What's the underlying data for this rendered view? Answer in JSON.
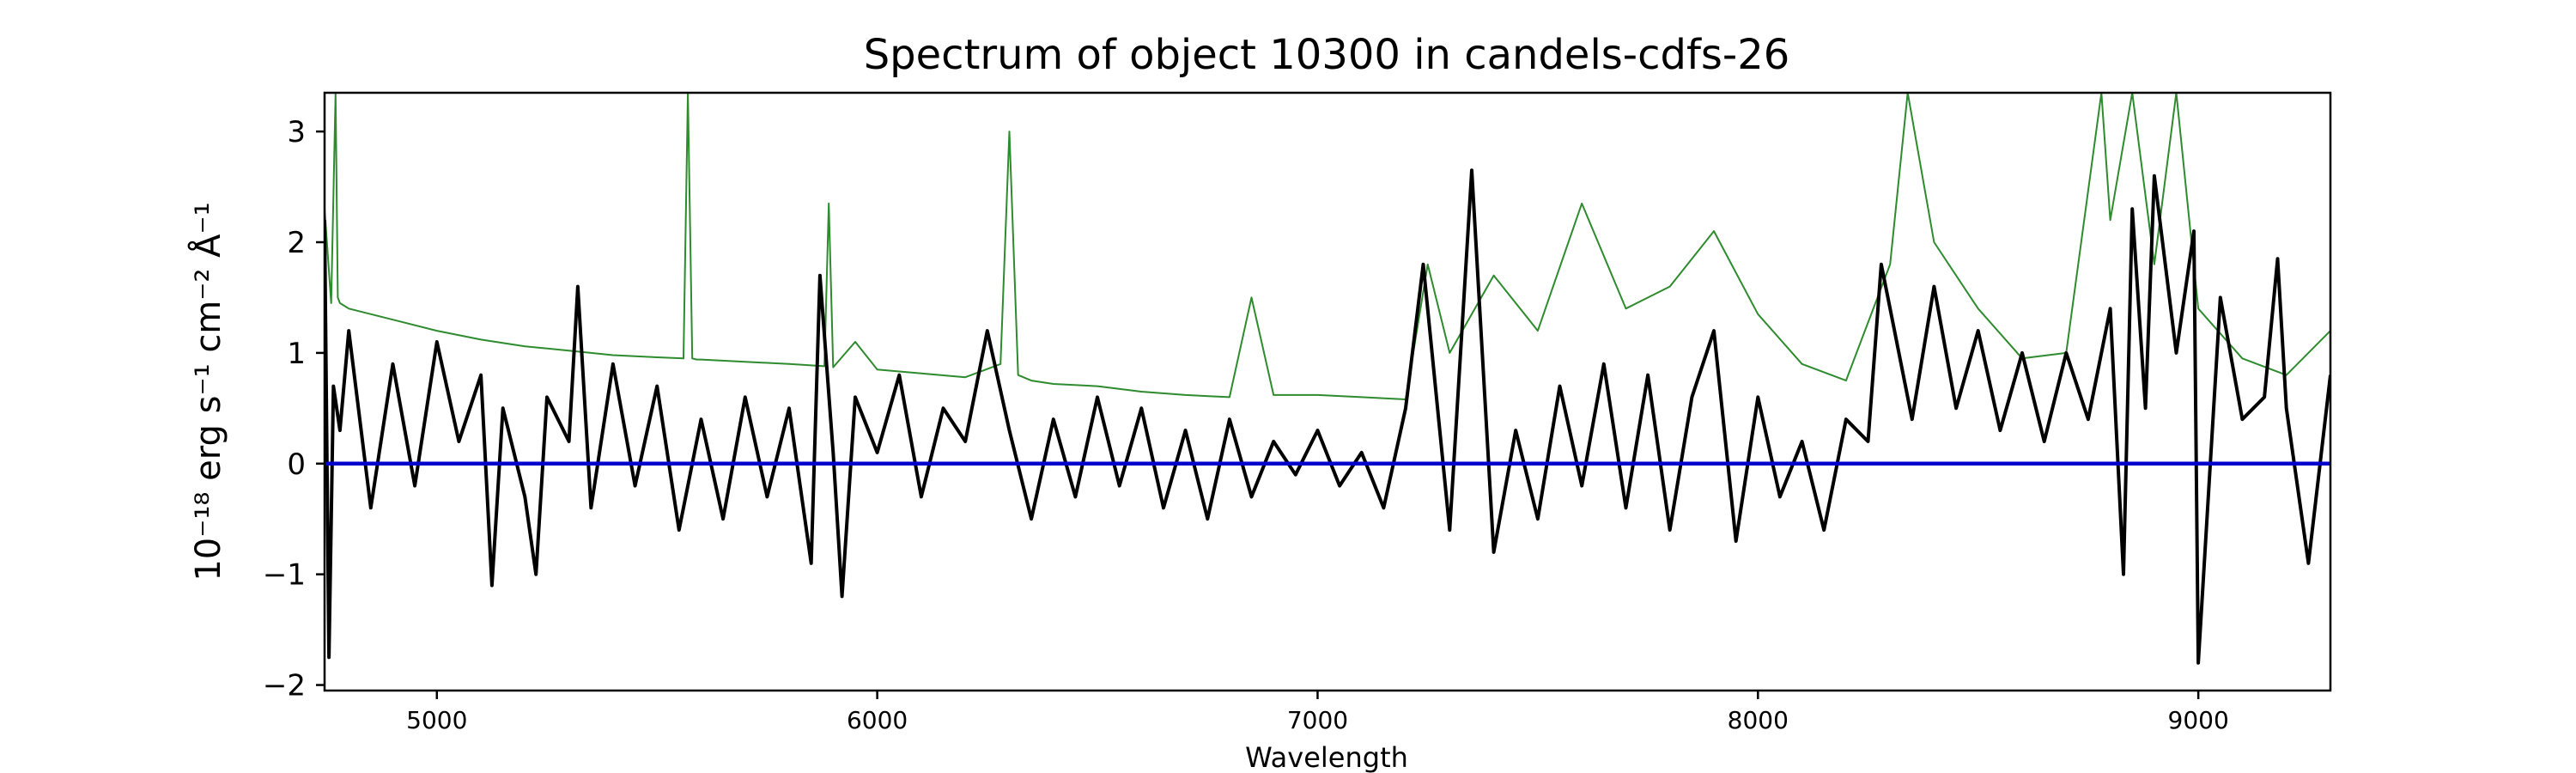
{
  "chart_data": {
    "type": "line",
    "title": "Spectrum of object 10300 in candels-cdfs-26",
    "xlabel": "Wavelength",
    "ylabel": "10⁻¹⁸ erg s⁻¹ cm⁻² Å⁻¹",
    "xlim": [
      4745,
      9300
    ],
    "ylim": [
      -2.05,
      3.35
    ],
    "x_ticks": [
      5000,
      6000,
      7000,
      8000,
      9000
    ],
    "y_ticks": [
      -2,
      -1,
      0,
      1,
      2,
      3
    ],
    "grid": false,
    "legend": "none",
    "colors": {
      "flux": "#000000",
      "error": "#2e8b2e",
      "zero": "#0000cc"
    },
    "series": [
      {
        "key": "error",
        "x": [
          4745,
          4760,
          4770,
          4775,
          4780,
          4800,
          4900,
          5000,
          5100,
          5200,
          5300,
          5400,
          5500,
          5560,
          5570,
          5580,
          5590,
          5600,
          5700,
          5800,
          5880,
          5890,
          5900,
          5950,
          6000,
          6200,
          6280,
          6300,
          6320,
          6350,
          6400,
          6500,
          6600,
          6700,
          6800,
          6850,
          6900,
          7000,
          7100,
          7200,
          7250,
          7300,
          7400,
          7500,
          7600,
          7700,
          7800,
          7900,
          8000,
          8100,
          8200,
          8300,
          8340,
          8400,
          8500,
          8600,
          8700,
          8780,
          8800,
          8850,
          8900,
          8950,
          9000,
          9100,
          9200,
          9300
        ],
        "values": [
          2.3,
          1.45,
          3.35,
          1.5,
          1.45,
          1.4,
          1.3,
          1.2,
          1.12,
          1.06,
          1.02,
          0.98,
          0.96,
          0.95,
          3.35,
          0.95,
          0.94,
          0.94,
          0.92,
          0.9,
          0.88,
          2.35,
          0.87,
          1.1,
          0.85,
          0.78,
          0.9,
          3.0,
          0.8,
          0.75,
          0.72,
          0.7,
          0.65,
          0.62,
          0.6,
          1.5,
          0.62,
          0.62,
          0.6,
          0.58,
          1.8,
          1.0,
          1.7,
          1.2,
          2.35,
          1.4,
          1.6,
          2.1,
          1.35,
          0.9,
          0.75,
          1.8,
          3.35,
          2.0,
          1.4,
          0.95,
          1.0,
          3.35,
          2.2,
          3.35,
          1.8,
          3.35,
          1.4,
          0.95,
          0.8,
          1.2
        ]
      },
      {
        "key": "flux",
        "x": [
          4745,
          4755,
          4765,
          4780,
          4800,
          4850,
          4900,
          4950,
          5000,
          5050,
          5100,
          5125,
          5150,
          5200,
          5225,
          5250,
          5300,
          5320,
          5350,
          5400,
          5450,
          5500,
          5550,
          5600,
          5650,
          5700,
          5750,
          5800,
          5850,
          5870,
          5900,
          5920,
          5950,
          6000,
          6050,
          6100,
          6150,
          6200,
          6250,
          6300,
          6350,
          6400,
          6450,
          6500,
          6550,
          6600,
          6650,
          6700,
          6750,
          6800,
          6850,
          6900,
          6950,
          7000,
          7050,
          7100,
          7150,
          7200,
          7240,
          7300,
          7350,
          7400,
          7450,
          7500,
          7550,
          7600,
          7650,
          7700,
          7750,
          7800,
          7850,
          7900,
          7950,
          8000,
          8050,
          8100,
          8150,
          8200,
          8250,
          8280,
          8300,
          8350,
          8400,
          8450,
          8500,
          8550,
          8600,
          8650,
          8700,
          8750,
          8800,
          8830,
          8850,
          8880,
          8900,
          8950,
          8990,
          9000,
          9050,
          9100,
          9150,
          9180,
          9200,
          9250,
          9300
        ],
        "values": [
          2.2,
          -1.75,
          0.7,
          0.3,
          1.2,
          -0.4,
          0.9,
          -0.2,
          1.1,
          0.2,
          0.8,
          -1.1,
          0.5,
          -0.3,
          -1.0,
          0.6,
          0.2,
          1.6,
          -0.4,
          0.9,
          -0.2,
          0.7,
          -0.6,
          0.4,
          -0.5,
          0.6,
          -0.3,
          0.5,
          -0.9,
          1.7,
          0.1,
          -1.2,
          0.6,
          0.1,
          0.8,
          -0.3,
          0.5,
          0.2,
          1.2,
          0.3,
          -0.5,
          0.4,
          -0.3,
          0.6,
          -0.2,
          0.5,
          -0.4,
          0.3,
          -0.5,
          0.4,
          -0.3,
          0.2,
          -0.1,
          0.3,
          -0.2,
          0.1,
          -0.4,
          0.5,
          1.8,
          -0.6,
          2.65,
          -0.8,
          0.3,
          -0.5,
          0.7,
          -0.2,
          0.9,
          -0.4,
          0.8,
          -0.6,
          0.6,
          1.2,
          -0.7,
          0.6,
          -0.3,
          0.2,
          -0.6,
          0.4,
          0.2,
          1.8,
          1.4,
          0.4,
          1.6,
          0.5,
          1.2,
          0.3,
          1.0,
          0.2,
          1.0,
          0.4,
          1.4,
          -1.0,
          2.3,
          0.5,
          2.6,
          1.0,
          2.1,
          -1.8,
          1.5,
          0.4,
          0.6,
          1.85,
          0.5,
          -0.9,
          0.8
        ]
      },
      {
        "key": "zero",
        "x": [
          4745,
          9300
        ],
        "values": [
          0,
          0
        ]
      }
    ]
  }
}
